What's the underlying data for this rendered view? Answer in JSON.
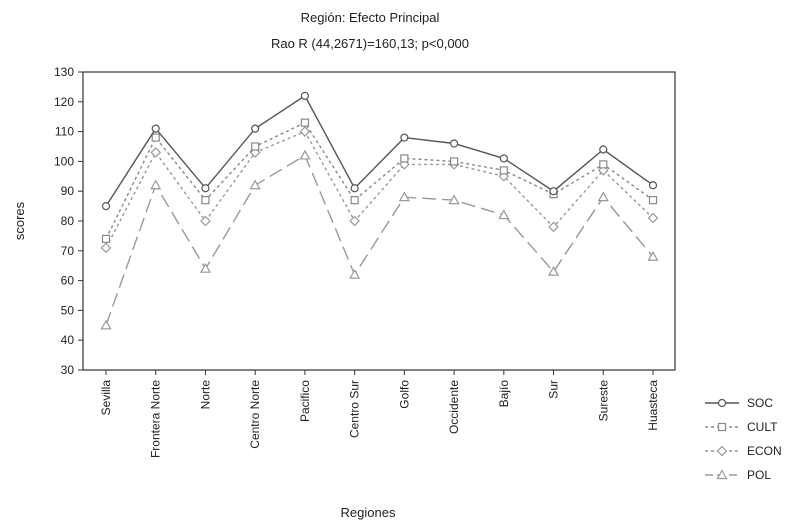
{
  "chart_data": {
    "type": "line",
    "title": "Región: Efecto Principal",
    "subtitle": "Rao R (44,2671)=160,13; p<0,000",
    "xlabel": "Regiones",
    "ylabel": "scores",
    "ylim": [
      30,
      130
    ],
    "yticks": [
      30,
      40,
      50,
      60,
      70,
      80,
      90,
      100,
      110,
      120,
      130
    ],
    "grid": false,
    "legend_position": "bottom-right",
    "categories": [
      "Sevilla",
      "Frontera Norte",
      "Norte",
      "Centro Norte",
      "Pacifico",
      "Centro Sur",
      "Golfo",
      "Occidente",
      "Bajío",
      "Sur",
      "Sureste",
      "Huasteca"
    ],
    "series": [
      {
        "name": "SOC",
        "marker": "circle",
        "dash": "solid",
        "color": "#555555",
        "values": [
          85,
          111,
          91,
          111,
          122,
          91,
          108,
          106,
          101,
          90,
          104,
          92
        ]
      },
      {
        "name": "CULT",
        "marker": "square",
        "dash": "dotted",
        "color": "#888888",
        "values": [
          74,
          108,
          87,
          105,
          113,
          87,
          101,
          100,
          97,
          89,
          99,
          87
        ]
      },
      {
        "name": "ECON",
        "marker": "diamond",
        "dash": "dotted",
        "color": "#999999",
        "values": [
          71,
          103,
          80,
          103,
          110,
          80,
          99,
          99,
          95,
          78,
          97,
          81
        ]
      },
      {
        "name": "POL",
        "marker": "triangle",
        "dash": "dashed",
        "color": "#999999",
        "values": [
          45,
          92,
          64,
          92,
          102,
          62,
          88,
          87,
          82,
          63,
          88,
          68
        ]
      }
    ]
  }
}
